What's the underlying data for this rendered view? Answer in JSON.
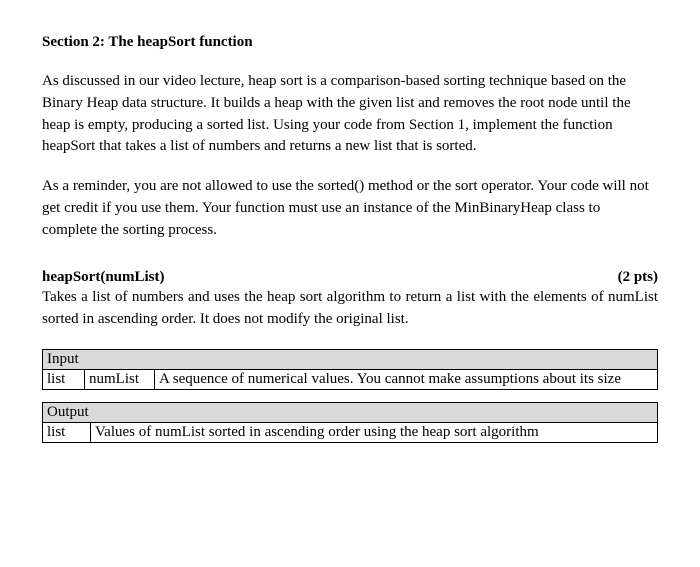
{
  "section": {
    "title": "Section 2: The heapSort function",
    "para1": "As discussed in our video lecture, heap sort is a comparison-based sorting technique based on the Binary Heap data structure. It builds a heap with the given list and removes the root node until the heap is empty, producing a sorted list. Using your code from Section 1, implement the function heapSort that takes a list of numbers and returns a new list that is sorted.",
    "para2": "As a reminder, you are not allowed to use the sorted() method or the sort operator. Your code will not get credit if you use them. Your function must use an instance of the MinBinaryHeap class to complete the sorting process."
  },
  "func": {
    "signature": "heapSort(numList)",
    "points": "(2 pts)",
    "description": "Takes a list of numbers and uses the heap sort algorithm to return a list with the elements of numList sorted in ascending order. It does not modify the original list."
  },
  "input_table": {
    "header": "Input",
    "rows": [
      {
        "type": "list",
        "name": "numList",
        "desc": "A sequence of numerical values. You cannot make assumptions about its size"
      }
    ]
  },
  "output_table": {
    "header": "Output",
    "rows": [
      {
        "type": "list",
        "desc": "Values of numList sorted in ascending order using the heap sort algorithm"
      }
    ]
  }
}
